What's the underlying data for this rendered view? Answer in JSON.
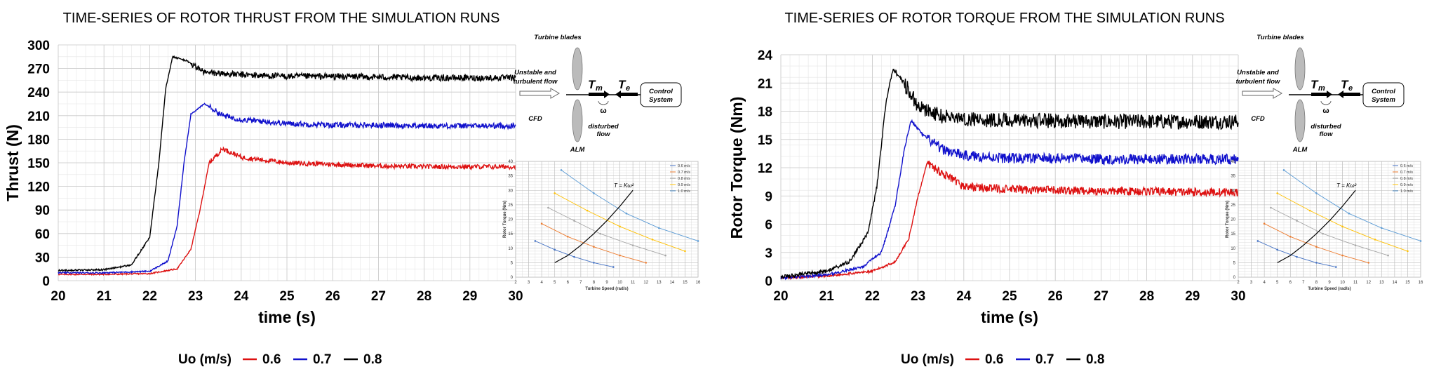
{
  "colors": {
    "red": "#dd1111",
    "blue": "#1111cc",
    "black": "#000000",
    "grid": "#dddddd"
  },
  "chart_data": [
    {
      "type": "line",
      "title": "TIME-SERIES OF ROTOR THRUST FROM THE SIMULATION RUNS",
      "xlabel": "time (s)",
      "ylabel": "Thrust (N)",
      "xlim": [
        20,
        30
      ],
      "ylim": [
        0,
        300
      ],
      "xticks": [
        20,
        21,
        22,
        23,
        24,
        25,
        26,
        27,
        28,
        29,
        30
      ],
      "yticks": [
        0,
        30,
        60,
        90,
        120,
        150,
        180,
        210,
        240,
        270,
        300
      ],
      "grid": true,
      "legend": {
        "title": "Uo (m/s)",
        "placement": "bottom"
      },
      "series": [
        {
          "name": "0.6",
          "color": "#dd1111",
          "x": [
            20,
            21,
            22,
            22.6,
            22.9,
            23.1,
            23.3,
            23.6,
            24,
            25,
            26,
            27,
            28,
            29,
            30
          ],
          "y": [
            8,
            8,
            9,
            15,
            40,
            90,
            150,
            168,
            157,
            150,
            148,
            146,
            145,
            145,
            145
          ]
        },
        {
          "name": "0.7",
          "color": "#1111cc",
          "x": [
            20,
            21,
            22,
            22.4,
            22.6,
            22.75,
            22.9,
            23.2,
            23.6,
            24,
            25,
            26,
            27,
            28,
            29,
            30
          ],
          "y": [
            10,
            10,
            12,
            25,
            70,
            150,
            212,
            225,
            210,
            205,
            200,
            198,
            198,
            197,
            197,
            197
          ]
        },
        {
          "name": "0.8",
          "color": "#000000",
          "x": [
            20,
            21,
            21.6,
            22,
            22.2,
            22.35,
            22.5,
            22.8,
            23.2,
            24,
            25,
            26,
            27,
            28,
            29,
            30
          ],
          "y": [
            13,
            14,
            20,
            55,
            150,
            245,
            285,
            280,
            265,
            262,
            260,
            260,
            259,
            258,
            258,
            258
          ]
        }
      ]
    },
    {
      "type": "line",
      "title": "TIME-SERIES OF ROTOR TORQUE FROM THE SIMULATION RUNS",
      "xlabel": "time (s)",
      "ylabel": "Rotor Torque (Nm)",
      "xlim": [
        20,
        30
      ],
      "ylim": [
        0,
        24
      ],
      "xticks": [
        20,
        21,
        22,
        23,
        24,
        25,
        26,
        27,
        28,
        29,
        30
      ],
      "yticks": [
        0,
        3,
        6,
        9,
        12,
        15,
        18,
        21,
        24
      ],
      "grid": true,
      "legend": {
        "title": "Uo (m/s)",
        "placement": "bottom"
      },
      "series": [
        {
          "name": "0.6",
          "color": "#dd1111",
          "x": [
            20,
            21,
            22,
            22.5,
            22.8,
            23,
            23.2,
            23.5,
            24,
            25,
            26,
            27,
            28,
            29,
            30
          ],
          "y": [
            0.3,
            0.5,
            1,
            2,
            4.5,
            9,
            12.5,
            11.5,
            10,
            9.7,
            9.6,
            9.5,
            9.5,
            9.4,
            9.4
          ]
        },
        {
          "name": "0.7",
          "color": "#1111cc",
          "x": [
            20,
            21,
            21.8,
            22.2,
            22.5,
            22.7,
            22.85,
            23.1,
            23.5,
            24,
            25,
            26,
            27,
            28,
            29,
            30
          ],
          "y": [
            0.3,
            0.6,
            1.5,
            3,
            8,
            14,
            17,
            15.5,
            14,
            13.3,
            13,
            13,
            12.9,
            12.9,
            12.9,
            12.9
          ]
        },
        {
          "name": "0.8",
          "color": "#000000",
          "x": [
            20,
            21,
            21.5,
            21.9,
            22.1,
            22.3,
            22.45,
            22.7,
            23,
            23.5,
            24,
            25,
            26,
            27,
            28,
            29,
            30
          ],
          "y": [
            0.4,
            1,
            2,
            5,
            10,
            19,
            22.5,
            21,
            18.5,
            17.5,
            17.2,
            17,
            17,
            16.9,
            16.9,
            16.9,
            16.9
          ]
        }
      ]
    },
    {
      "type": "line",
      "xlabel": "Turbine Speed (rad/s)",
      "ylabel": "Rotor Torque (Nm)",
      "xlim": [
        2,
        16
      ],
      "ylim": [
        0,
        40
      ],
      "xticks": [
        2,
        3,
        4,
        5,
        6,
        7,
        8,
        9,
        10,
        11,
        12,
        13,
        14,
        15,
        16
      ],
      "yticks": [
        0,
        5,
        10,
        15,
        20,
        25,
        30,
        35,
        40
      ],
      "grid": true,
      "legend": {
        "placement": "top-right"
      },
      "annotation": "T = Kω²",
      "series": [
        {
          "name": "0.6 m/s",
          "color": "#4472c4",
          "x": [
            3.5,
            5,
            6.5,
            8,
            9.5
          ],
          "y": [
            12.5,
            9.5,
            7,
            5,
            3.5
          ]
        },
        {
          "name": "0.7 m/s",
          "color": "#ed7d31",
          "x": [
            4,
            6,
            8,
            10,
            12
          ],
          "y": [
            18.5,
            14,
            10.5,
            7.5,
            5
          ]
        },
        {
          "name": "0.8 m/s",
          "color": "#a5a5a5",
          "x": [
            4.5,
            6.5,
            8.5,
            11,
            13.5
          ],
          "y": [
            24,
            19.5,
            15,
            11,
            7.5
          ]
        },
        {
          "name": "0.9 m/s",
          "color": "#ffc000",
          "x": [
            5,
            7.5,
            10,
            12.5,
            15
          ],
          "y": [
            29,
            23,
            17.5,
            13,
            9
          ]
        },
        {
          "name": "1.0 m/s",
          "color": "#5b9bd5",
          "x": [
            5.5,
            8,
            10.5,
            13,
            16
          ],
          "y": [
            37,
            29,
            22,
            17,
            12.5
          ]
        },
        {
          "name": "",
          "color": "#000000",
          "x": [
            5,
            6,
            7,
            8,
            9,
            10,
            11
          ],
          "y": [
            5,
            7.5,
            11,
            15,
            19.5,
            24.5,
            30
          ]
        }
      ]
    }
  ],
  "diagram": {
    "turbine_blades": "Turbine blades",
    "flow_label_1": "Unstable and",
    "flow_label_2": "turbulent flow",
    "cfd": "CFD",
    "alm": "ALM",
    "disturbed_1": "disturbed",
    "disturbed_2": "flow",
    "tm_main": "T",
    "tm_sub": "m",
    "te_main": "T",
    "te_sub": "e",
    "omega": "ω",
    "control_1": "Control",
    "control_2": "System"
  }
}
